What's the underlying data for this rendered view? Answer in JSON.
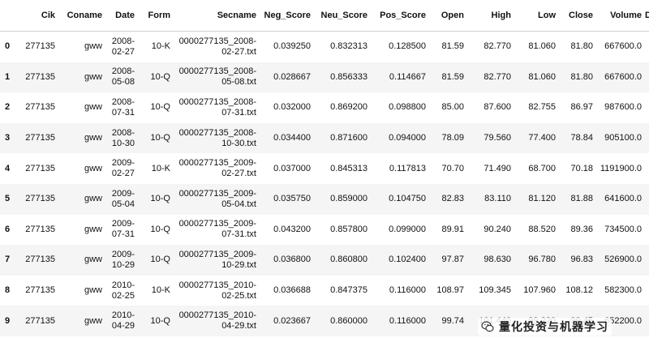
{
  "table": {
    "columns": [
      "Cik",
      "Coname",
      "Date",
      "Form",
      "Secname",
      "Neg_Score",
      "Neu_Score",
      "Pos_Score",
      "Open",
      "High",
      "Low",
      "Close",
      "Volume",
      "Di"
    ],
    "rows": [
      {
        "idx": "0",
        "cik": "277135",
        "coname": "gww",
        "date": "2008-02-27",
        "form": "10-K",
        "secname": "0000277135_2008-02-27.txt",
        "neg": "0.039250",
        "neu": "0.832313",
        "pos": "0.128500",
        "open": "81.59",
        "high": "82.770",
        "low": "81.060",
        "close": "81.80",
        "volume": "667600.0"
      },
      {
        "idx": "1",
        "cik": "277135",
        "coname": "gww",
        "date": "2008-05-08",
        "form": "10-Q",
        "secname": "0000277135_2008-05-08.txt",
        "neg": "0.028667",
        "neu": "0.856333",
        "pos": "0.114667",
        "open": "81.59",
        "high": "82.770",
        "low": "81.060",
        "close": "81.80",
        "volume": "667600.0"
      },
      {
        "idx": "2",
        "cik": "277135",
        "coname": "gww",
        "date": "2008-07-31",
        "form": "10-Q",
        "secname": "0000277135_2008-07-31.txt",
        "neg": "0.032000",
        "neu": "0.869200",
        "pos": "0.098800",
        "open": "85.00",
        "high": "87.600",
        "low": "82.755",
        "close": "86.97",
        "volume": "987600.0"
      },
      {
        "idx": "3",
        "cik": "277135",
        "coname": "gww",
        "date": "2008-10-30",
        "form": "10-Q",
        "secname": "0000277135_2008-10-30.txt",
        "neg": "0.034400",
        "neu": "0.871600",
        "pos": "0.094000",
        "open": "78.09",
        "high": "79.560",
        "low": "77.400",
        "close": "78.84",
        "volume": "905100.0"
      },
      {
        "idx": "4",
        "cik": "277135",
        "coname": "gww",
        "date": "2009-02-27",
        "form": "10-K",
        "secname": "0000277135_2009-02-27.txt",
        "neg": "0.037000",
        "neu": "0.845313",
        "pos": "0.117813",
        "open": "70.70",
        "high": "71.490",
        "low": "68.700",
        "close": "70.18",
        "volume": "1191900.0"
      },
      {
        "idx": "5",
        "cik": "277135",
        "coname": "gww",
        "date": "2009-05-04",
        "form": "10-Q",
        "secname": "0000277135_2009-05-04.txt",
        "neg": "0.035750",
        "neu": "0.859000",
        "pos": "0.104750",
        "open": "82.83",
        "high": "83.110",
        "low": "81.120",
        "close": "81.88",
        "volume": "641600.0"
      },
      {
        "idx": "6",
        "cik": "277135",
        "coname": "gww",
        "date": "2009-07-31",
        "form": "10-Q",
        "secname": "0000277135_2009-07-31.txt",
        "neg": "0.043200",
        "neu": "0.857800",
        "pos": "0.099000",
        "open": "89.91",
        "high": "90.240",
        "low": "88.520",
        "close": "89.36",
        "volume": "734500.0"
      },
      {
        "idx": "7",
        "cik": "277135",
        "coname": "gww",
        "date": "2009-10-29",
        "form": "10-Q",
        "secname": "0000277135_2009-10-29.txt",
        "neg": "0.036800",
        "neu": "0.860800",
        "pos": "0.102400",
        "open": "97.87",
        "high": "98.630",
        "low": "96.780",
        "close": "96.83",
        "volume": "526900.0"
      },
      {
        "idx": "8",
        "cik": "277135",
        "coname": "gww",
        "date": "2010-02-25",
        "form": "10-K",
        "secname": "0000277135_2010-02-25.txt",
        "neg": "0.036688",
        "neu": "0.847375",
        "pos": "0.116000",
        "open": "108.97",
        "high": "109.345",
        "low": "107.960",
        "close": "108.12",
        "volume": "582300.0"
      },
      {
        "idx": "9",
        "cik": "277135",
        "coname": "gww",
        "date": "2010-04-29",
        "form": "10-Q",
        "secname": "0000277135_2010-04-29.txt",
        "neg": "0.023667",
        "neu": "0.860000",
        "pos": "0.116000",
        "open": "99.74",
        "high": "101.440",
        "low": "99.220",
        "close": "99.45",
        "volume": "652200.0"
      }
    ]
  },
  "watermark": {
    "text": "量化投资与机器学习",
    "icon": "wechat-icon"
  }
}
